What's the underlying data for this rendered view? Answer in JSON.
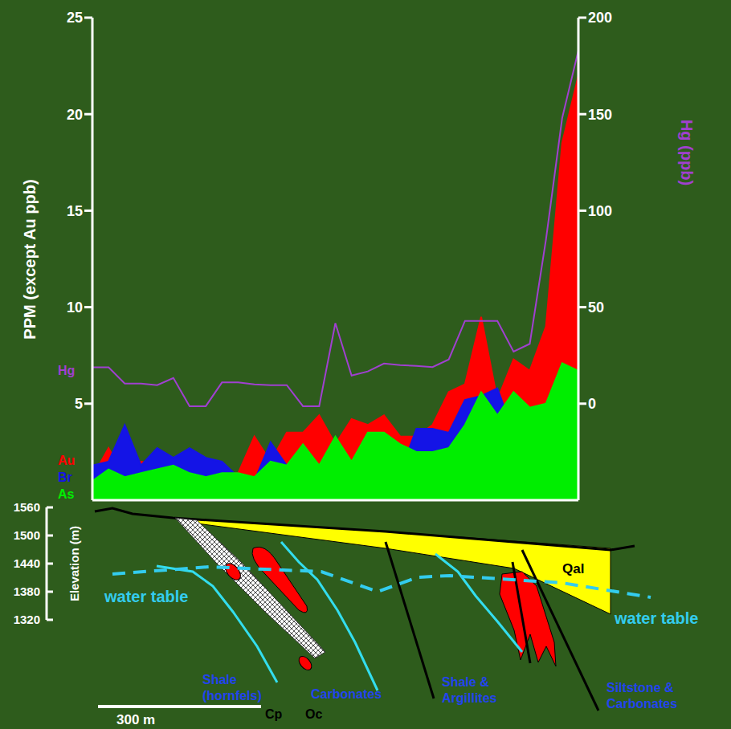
{
  "chart_data": {
    "type": "area",
    "y_label": "PPM (except Au ppb)",
    "y2_label": "Hg (ppb)",
    "categories": [
      null,
      null,
      null,
      null,
      null,
      null,
      null,
      null,
      null,
      null,
      null,
      null,
      null,
      null,
      null,
      null,
      null,
      null,
      null,
      null,
      null,
      null,
      null,
      null,
      null,
      null,
      null,
      null,
      null,
      null,
      null
    ],
    "ylim": [
      0,
      25
    ],
    "yticks": [
      5,
      10,
      15,
      20,
      25
    ],
    "y2lim": [
      -50,
      200
    ],
    "y2ticks": [
      0,
      50,
      100,
      150,
      200
    ],
    "tick_labels": "y",
    "legend": "left",
    "series": [
      {
        "name": "Au",
        "type": "area",
        "color": "#ff0000",
        "values": [
          1.2,
          2.7,
          1.2,
          2.0,
          1.8,
          1.6,
          1.2,
          1.8,
          1.4,
          1.4,
          3.3,
          2.0,
          3.5,
          3.5,
          4.4,
          2.9,
          4.2,
          3.9,
          4.4,
          3.3,
          3.3,
          3.9,
          5.6,
          6.0,
          9.5,
          5.2,
          7.3,
          6.7,
          9.0,
          18.5,
          22.0
        ]
      },
      {
        "name": "Br",
        "type": "area",
        "color": "#1414e6",
        "values": [
          1.8,
          2.0,
          3.9,
          1.8,
          2.7,
          2.2,
          2.7,
          2.2,
          2.0,
          1.2,
          1.0,
          3.0,
          1.8,
          1.6,
          1.4,
          2.0,
          1.4,
          1.4,
          1.4,
          1.4,
          3.7,
          3.7,
          3.5,
          5.2,
          5.4,
          5.8,
          3.5,
          3.1,
          2.2,
          2.9,
          2.2
        ]
      },
      {
        "name": "As",
        "type": "area",
        "color": "#00ee00",
        "values": [
          1.0,
          1.6,
          1.2,
          1.4,
          1.6,
          1.8,
          1.4,
          1.2,
          1.4,
          1.4,
          1.2,
          2.0,
          1.8,
          2.9,
          1.8,
          3.3,
          2.0,
          3.5,
          3.5,
          2.9,
          2.5,
          2.5,
          2.7,
          3.9,
          5.6,
          4.4,
          5.6,
          4.8,
          5.0,
          7.1,
          6.7
        ]
      },
      {
        "name": "Hg",
        "type": "line",
        "axis": "y2",
        "color": "#a040d0",
        "values": [
          18.8,
          18.8,
          10.4,
          10.4,
          9.6,
          13.3,
          -1.3,
          -1.3,
          11,
          11,
          10,
          9.6,
          9.6,
          -1.3,
          -1.3,
          41.7,
          14.6,
          16.7,
          20.8,
          20,
          19.6,
          19,
          22.9,
          42.9,
          42.9,
          42.9,
          27,
          31,
          85,
          148,
          183
        ]
      }
    ]
  },
  "cross_section": {
    "elevation_title": "Elevation (m)",
    "elevation_ticks": [
      1560,
      1500,
      1440,
      1380,
      1320
    ],
    "scale_bar": "300 m",
    "labels": [
      "water table",
      "water table",
      "Qal",
      "Shale (hornfels)",
      "Carbonates",
      "Cp",
      "Oc",
      "Shale & Argillites",
      "Siltstone & Carbonates"
    ]
  }
}
